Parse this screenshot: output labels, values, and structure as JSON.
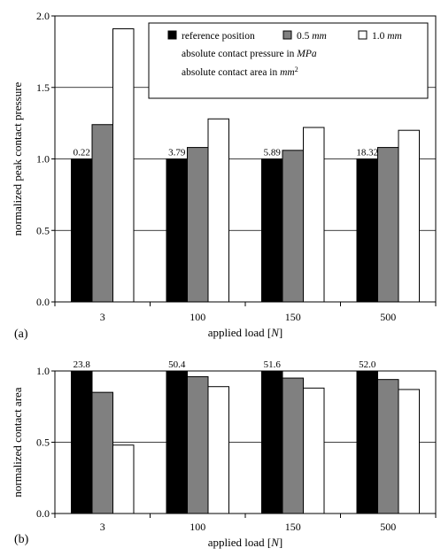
{
  "chart_data": [
    {
      "type": "bar",
      "panel_tag": "(a)",
      "categories": [
        "3",
        "100",
        "150",
        "500"
      ],
      "series": [
        {
          "name": "reference position",
          "color": "#000000",
          "values": [
            1.0,
            1.0,
            1.0,
            1.0
          ]
        },
        {
          "name": "0.5 mm",
          "color": "#808080",
          "values": [
            1.24,
            1.08,
            1.06,
            1.08
          ]
        },
        {
          "name": "1.0 mm",
          "color": "#ffffff",
          "values": [
            1.91,
            1.28,
            1.22,
            1.2
          ]
        }
      ],
      "data_labels": [
        "0.22",
        "3.79",
        "5.89",
        "18.32"
      ],
      "legend": {
        "position": "top-right",
        "entries": [
          {
            "prefix": "reference position",
            "italic": "",
            "suffix": ""
          },
          {
            "prefix": "0.5 ",
            "italic": "mm",
            "suffix": ""
          },
          {
            "prefix": "1.0 ",
            "italic": "mm",
            "suffix": ""
          }
        ],
        "notes": [
          {
            "prefix": "absolute contact pressure in ",
            "italic": "MPa",
            "sup": ""
          },
          {
            "prefix": "absolute contact area in ",
            "italic": "mm",
            "sup": "2"
          }
        ]
      },
      "xlabel": {
        "prefix": "applied load [",
        "italic": "N",
        "suffix": "]"
      },
      "ylabel": "normalized peak contact pressure",
      "ylim": [
        0,
        2.0
      ],
      "yticks": [
        "0.0",
        "0.5",
        "1.0",
        "1.5",
        "2.0"
      ],
      "grid": true
    },
    {
      "type": "bar",
      "panel_tag": "(b)",
      "categories": [
        "3",
        "100",
        "150",
        "500"
      ],
      "series": [
        {
          "color": "#000000",
          "values": [
            1.0,
            1.0,
            1.0,
            1.0
          ]
        },
        {
          "color": "#808080",
          "values": [
            0.85,
            0.96,
            0.95,
            0.94
          ]
        },
        {
          "color": "#ffffff",
          "values": [
            0.48,
            0.89,
            0.88,
            0.87
          ]
        }
      ],
      "data_labels": [
        "23.8",
        "50.4",
        "51.6",
        "52.0"
      ],
      "xlabel": {
        "prefix": "applied load [",
        "italic": "N",
        "suffix": "]"
      },
      "ylabel": "normalized contact area",
      "ylim": [
        0,
        1.0
      ],
      "yticks": [
        "0.0",
        "0.5",
        "1.0"
      ],
      "grid": true
    }
  ]
}
